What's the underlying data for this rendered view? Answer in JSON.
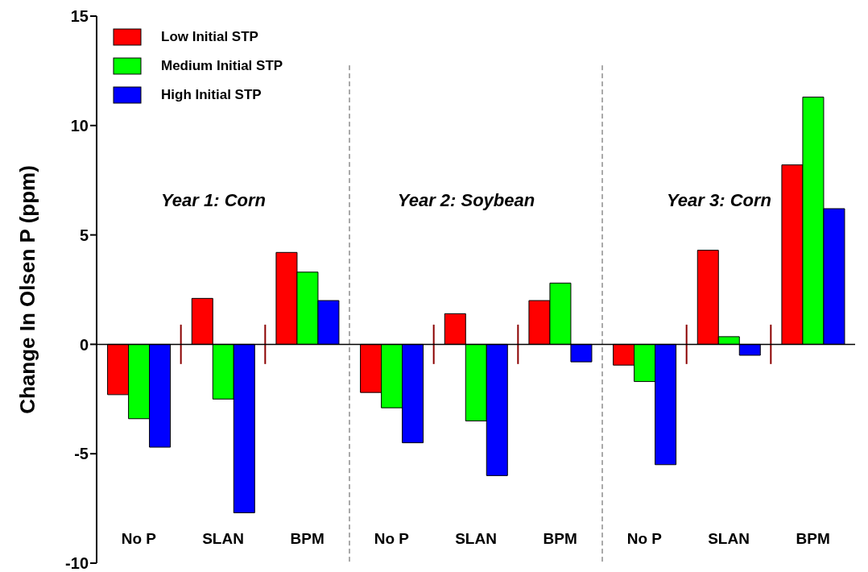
{
  "chart_data": {
    "type": "bar",
    "ylabel": "Change In Olsen P (ppm)",
    "categories": [
      "No P",
      "SLAN",
      "BPM",
      "No P",
      "SLAN",
      "BPM",
      "No P",
      "SLAN",
      "BPM"
    ],
    "series": [
      {
        "name": "Low Initial STP",
        "color": "#ff0000",
        "values": [
          -2.3,
          2.1,
          4.2,
          -2.2,
          1.4,
          2.0,
          -0.95,
          4.3,
          8.2
        ]
      },
      {
        "name": "Medium Initial STP",
        "color": "#00ff00",
        "values": [
          -3.4,
          -2.5,
          3.3,
          -2.9,
          -3.5,
          2.8,
          -1.7,
          0.35,
          11.3
        ]
      },
      {
        "name": "High Initial STP",
        "color": "#0000ff",
        "values": [
          -4.7,
          -7.7,
          2.0,
          -4.5,
          -6.0,
          -0.8,
          -5.5,
          -0.5,
          6.2
        ]
      }
    ],
    "annotations": [
      "Year 1: Corn",
      "Year 2: Soybean",
      "Year 3: Corn"
    ],
    "ylim": [
      -10,
      15
    ],
    "yticks": [
      -10,
      -5,
      0,
      5,
      10,
      15
    ],
    "ref_lines": [
      {
        "axis": "y",
        "value": 0,
        "color": "#000000"
      }
    ],
    "legend": "top left"
  }
}
